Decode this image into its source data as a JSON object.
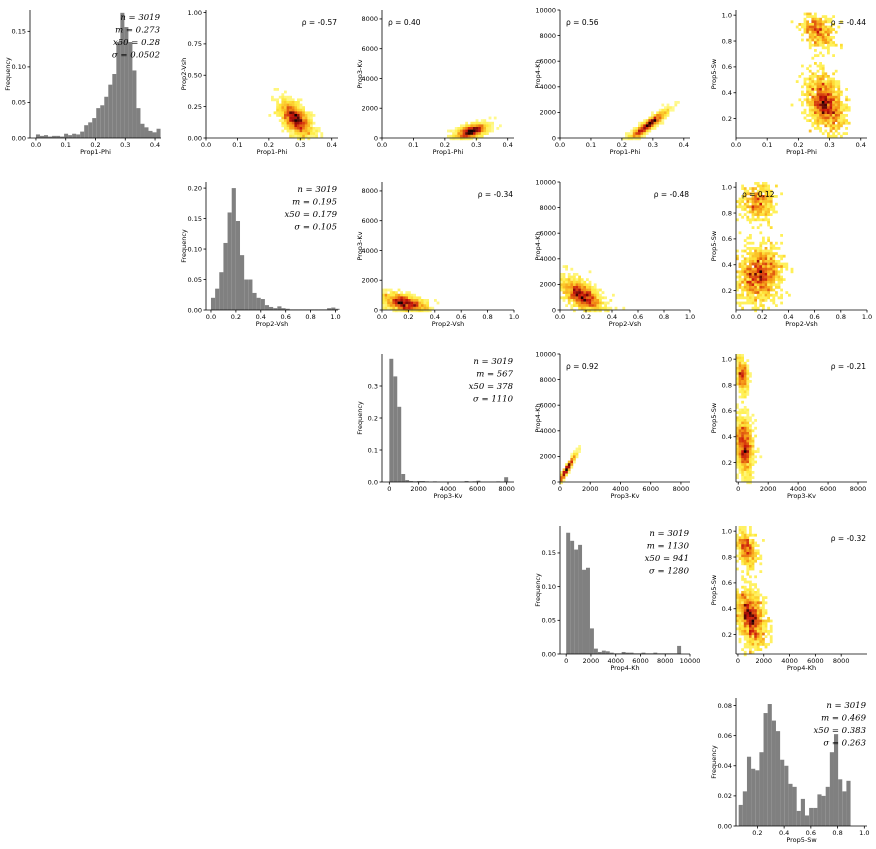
{
  "chart_data": {
    "type": "scatter-matrix",
    "variables": [
      "Prop1-Phi",
      "Prop2-Vsh",
      "Prop3-Kv",
      "Prop4-Kh",
      "Prop5-Sw"
    ],
    "histogram_ylabel": "Frequency",
    "colors": {
      "hist": "#808080",
      "density_low": "#ffff99",
      "density_mid": "#e0301e",
      "density_high": "#000000"
    },
    "diagonal": [
      {
        "variable": "Prop1-Phi",
        "stats": [
          "n = 3019",
          "m = 0.273",
          "x50 = 0.28",
          "σ = 0.0502"
        ],
        "stat_values": {
          "n": 3019,
          "mean": 0.273,
          "median": 0.28,
          "std": 0.0502
        },
        "xlim": [
          -0.02,
          0.42
        ],
        "ylim": [
          0,
          0.18
        ],
        "xticks": [
          "0.0",
          "0.1",
          "0.2",
          "0.3",
          "0.4"
        ],
        "yticks": [
          "0.00",
          "0.05",
          "0.10",
          "0.15"
        ],
        "bin_edges": [
          0.0,
          0.0135
        ],
        "values": [
          0.005,
          0.003,
          0.004,
          0.002,
          0.003,
          0.003,
          0.002,
          0.006,
          0.004,
          0.006,
          0.005,
          0.009,
          0.018,
          0.022,
          0.028,
          0.042,
          0.046,
          0.058,
          0.075,
          0.09,
          0.135,
          0.176,
          0.156,
          0.135,
          0.095,
          0.042,
          0.02,
          0.015,
          0.01,
          0.008,
          0.013
        ]
      },
      {
        "variable": "Prop2-Vsh",
        "stats": [
          "n = 3019",
          "m = 0.195",
          "x50 = 0.179",
          "σ = 0.105"
        ],
        "stat_values": {
          "n": 3019,
          "mean": 0.195,
          "median": 0.179,
          "std": 0.105
        },
        "xlim": [
          -0.04,
          1.02
        ],
        "ylim": [
          0,
          0.21
        ],
        "xticks": [
          "0.0",
          "0.2",
          "0.4",
          "0.6",
          "0.8",
          "1.0"
        ],
        "yticks": [
          "0.00",
          "0.05",
          "0.10",
          "0.15",
          "0.20"
        ],
        "bin_edges": [
          0.0,
          0.0333
        ],
        "values": [
          0.02,
          0.035,
          0.062,
          0.11,
          0.16,
          0.2,
          0.146,
          0.09,
          0.05,
          0.05,
          0.028,
          0.02,
          0.018,
          0.008,
          0.005,
          0.003,
          0.006,
          0.003,
          0.002,
          0.001,
          0.001,
          0.001,
          0.001,
          0.001,
          0.001,
          0.001,
          0.001,
          0.001,
          0.003,
          0.004,
          0.002
        ]
      },
      {
        "variable": "Prop3-Kv",
        "stats": [
          "n = 3019",
          "m = 567",
          "x50 = 378",
          "σ = 1110"
        ],
        "stat_values": {
          "n": 3019,
          "mean": 567,
          "median": 378,
          "std": 1110
        },
        "xlim": [
          -500,
          8500
        ],
        "ylim": [
          0,
          0.4
        ],
        "xticks": [
          "0",
          "2000",
          "4000",
          "6000",
          "8000"
        ],
        "yticks": [
          "0.0",
          "0.1",
          "0.2",
          "0.3"
        ],
        "bin_edges": [
          0,
          270
        ],
        "values": [
          0.385,
          0.33,
          0.235,
          0.025,
          0.006,
          0.003,
          0.002,
          0.003,
          0.003,
          0.002,
          0.001,
          0.002,
          0.001,
          0.001,
          0.001,
          0.001,
          0.001,
          0.001,
          0.001,
          0.003,
          0.001,
          0.002,
          0.004,
          0.001,
          0.001,
          0.001,
          0.001,
          0.002,
          0.001,
          0.015
        ]
      },
      {
        "variable": "Prop4-Kh",
        "stats": [
          "n = 3019",
          "m = 1130",
          "x50 = 941",
          "σ = 1280"
        ],
        "stat_values": {
          "n": 3019,
          "mean": 1130,
          "median": 941,
          "std": 1280
        },
        "xlim": [
          -500,
          10000
        ],
        "ylim": [
          0,
          0.19
        ],
        "xticks": [
          "0",
          "2000",
          "4000",
          "6000",
          "8000",
          "10000"
        ],
        "yticks": [
          "0.00",
          "0.05",
          "0.10",
          "0.15"
        ],
        "bin_edges": [
          0,
          320
        ],
        "values": [
          0.18,
          0.168,
          0.155,
          0.162,
          0.125,
          0.128,
          0.038,
          0.008,
          0.003,
          0.005,
          0.004,
          0.002,
          0.001,
          0.001,
          0.003,
          0.002,
          0.002,
          0.001,
          0.001,
          0.002,
          0.001,
          0.001,
          0.002,
          0.001,
          0.001,
          0.001,
          0.001,
          0.001,
          0.012
        ]
      },
      {
        "variable": "Prop5-Sw",
        "stats": [
          "n = 3019",
          "m = 0.469",
          "x50 = 0.383",
          "σ = 0.263"
        ],
        "stat_values": {
          "n": 3019,
          "mean": 0.469,
          "median": 0.383,
          "std": 0.263
        },
        "xlim": [
          0.04,
          1.02
        ],
        "ylim": [
          0,
          0.085
        ],
        "xticks": [
          "0.2",
          "0.4",
          "0.6",
          "0.8",
          "1.0"
        ],
        "yticks": [
          "0.00",
          "0.02",
          "0.04",
          "0.06",
          "0.08"
        ],
        "bin_edges": [
          0.06,
          0.031
        ],
        "values": [
          0.014,
          0.023,
          0.046,
          0.038,
          0.037,
          0.049,
          0.075,
          0.081,
          0.07,
          0.063,
          0.044,
          0.04,
          0.028,
          0.026,
          0.01,
          0.018,
          0.007,
          0.012,
          0.012,
          0.021,
          0.02,
          0.026,
          0.049,
          0.061,
          0.031,
          0.023,
          0.03
        ]
      }
    ],
    "scatter": [
      {
        "x": "Prop1-Phi",
        "y": "Prop2-Vsh",
        "row": 0,
        "col": 1,
        "rho_label": "ρ = -0.57",
        "rho": -0.57,
        "centers": [
          [
            0.285,
            0.15
          ]
        ],
        "spread": [
          [
            0.025,
            0.07
          ]
        ],
        "corr": -0.57,
        "weights": [
          1
        ],
        "xlim": [
          0,
          0.42
        ],
        "ylim": [
          0,
          1.02
        ],
        "xticks": [
          "0.0",
          "0.1",
          "0.2",
          "0.3",
          "0.4"
        ],
        "yticks": [
          "0.00",
          "0.25",
          "0.50",
          "0.75",
          "1.00"
        ]
      },
      {
        "x": "Prop1-Phi",
        "y": "Prop3-Kv",
        "row": 0,
        "col": 2,
        "rho_label": "ρ = 0.40",
        "rho": 0.4,
        "centers": [
          [
            0.285,
            450
          ]
        ],
        "spread": [
          [
            0.025,
            250
          ]
        ],
        "corr": 0.55,
        "weights": [
          1
        ],
        "xlim": [
          0,
          0.42
        ],
        "ylim": [
          0,
          8600
        ],
        "xticks": [
          "0.0",
          "0.1",
          "0.2",
          "0.3",
          "0.4"
        ],
        "yticks": [
          "0",
          "2000",
          "4000",
          "6000",
          "8000"
        ]
      },
      {
        "x": "Prop1-Phi",
        "y": "Prop4-Kh",
        "row": 0,
        "col": 3,
        "rho_label": "ρ = 0.56",
        "rho": 0.56,
        "centers": [
          [
            0.285,
            1000
          ]
        ],
        "spread": [
          [
            0.03,
            550
          ]
        ],
        "corr": 0.93,
        "weights": [
          1
        ],
        "xlim": [
          0,
          0.42
        ],
        "ylim": [
          0,
          10000
        ],
        "xticks": [
          "0.0",
          "0.1",
          "0.2",
          "0.3",
          "0.4"
        ],
        "yticks": [
          "0",
          "2000",
          "4000",
          "6000",
          "8000",
          "10000"
        ]
      },
      {
        "x": "Prop1-Phi",
        "y": "Prop5-Sw",
        "row": 0,
        "col": 4,
        "rho_label": "ρ = -0.44",
        "rho": -0.44,
        "centers": [
          [
            0.285,
            0.32
          ],
          [
            0.265,
            0.88
          ]
        ],
        "spread": [
          [
            0.03,
            0.11
          ],
          [
            0.025,
            0.07
          ]
        ],
        "corr": -0.3,
        "weights": [
          0.75,
          0.25
        ],
        "xlim": [
          0,
          0.42
        ],
        "ylim": [
          0.05,
          1.04
        ],
        "xticks": [
          "0.0",
          "0.1",
          "0.2",
          "0.3",
          "0.4"
        ],
        "yticks": [
          "0.2",
          "0.4",
          "0.6",
          "0.8",
          "1.0"
        ]
      },
      {
        "x": "Prop2-Vsh",
        "y": "Prop3-Kv",
        "row": 1,
        "col": 2,
        "rho_label": "ρ = -0.34",
        "rho": -0.34,
        "centers": [
          [
            0.17,
            450
          ]
        ],
        "spread": [
          [
            0.08,
            300
          ]
        ],
        "corr": -0.5,
        "weights": [
          1
        ],
        "xlim": [
          0,
          1.0
        ],
        "ylim": [
          0,
          8600
        ],
        "xticks": [
          "0.0",
          "0.2",
          "0.4",
          "0.6",
          "0.8",
          "1.0"
        ],
        "yticks": [
          "0",
          "2000",
          "4000",
          "6000",
          "8000"
        ]
      },
      {
        "x": "Prop2-Vsh",
        "y": "Prop4-Kh",
        "row": 1,
        "col": 3,
        "rho_label": "ρ = -0.48",
        "rho": -0.48,
        "centers": [
          [
            0.17,
            1100
          ]
        ],
        "spread": [
          [
            0.08,
            650
          ]
        ],
        "corr": -0.6,
        "weights": [
          1
        ],
        "xlim": [
          0,
          1.0
        ],
        "ylim": [
          0,
          10000
        ],
        "xticks": [
          "0.0",
          "0.2",
          "0.4",
          "0.6",
          "0.8",
          "1.0"
        ],
        "yticks": [
          "0",
          "2000",
          "4000",
          "6000",
          "8000",
          "10000"
        ]
      },
      {
        "x": "Prop2-Vsh",
        "y": "Prop5-Sw",
        "row": 1,
        "col": 4,
        "rho_label": "ρ = 0.12",
        "rho": 0.12,
        "centers": [
          [
            0.18,
            0.32
          ],
          [
            0.17,
            0.88
          ]
        ],
        "spread": [
          [
            0.08,
            0.11
          ],
          [
            0.07,
            0.07
          ]
        ],
        "corr": 0.1,
        "weights": [
          0.75,
          0.25
        ],
        "xlim": [
          0,
          1.0
        ],
        "ylim": [
          0.05,
          1.04
        ],
        "xticks": [
          "0.0",
          "0.2",
          "0.4",
          "0.6",
          "0.8",
          "1.0"
        ],
        "yticks": [
          "0.2",
          "0.4",
          "0.6",
          "0.8",
          "1.0"
        ]
      },
      {
        "x": "Prop3-Kv",
        "y": "Prop4-Kh",
        "row": 2,
        "col": 3,
        "rho_label": "ρ = 0.92",
        "rho": 0.92,
        "centers": [
          [
            450,
            1000
          ]
        ],
        "spread": [
          [
            300,
            600
          ]
        ],
        "corr": 0.97,
        "weights": [
          1
        ],
        "xlim": [
          0,
          8600
        ],
        "ylim": [
          0,
          10000
        ],
        "xticks": [
          "0",
          "2000",
          "4000",
          "6000",
          "8000"
        ],
        "yticks": [
          "0",
          "2000",
          "4000",
          "6000",
          "8000",
          "10000"
        ]
      },
      {
        "x": "Prop3-Kv",
        "y": "Prop5-Sw",
        "row": 2,
        "col": 4,
        "rho_label": "ρ = -0.21",
        "rho": -0.21,
        "centers": [
          [
            400,
            0.33
          ],
          [
            250,
            0.87
          ]
        ],
        "spread": [
          [
            280,
            0.11
          ],
          [
            200,
            0.07
          ]
        ],
        "corr": -0.2,
        "weights": [
          0.75,
          0.25
        ],
        "xlim": [
          -150,
          8600
        ],
        "ylim": [
          0.05,
          1.04
        ],
        "xticks": [
          "0",
          "2000",
          "4000",
          "6000",
          "8000"
        ],
        "yticks": [
          "0.2",
          "0.4",
          "0.6",
          "0.8",
          "1.0"
        ]
      },
      {
        "x": "Prop4-Kh",
        "y": "Prop5-Sw",
        "row": 3,
        "col": 4,
        "rho_label": "ρ = -0.32",
        "rho": -0.32,
        "centers": [
          [
            1000,
            0.33
          ],
          [
            700,
            0.87
          ]
        ],
        "spread": [
          [
            550,
            0.11
          ],
          [
            400,
            0.07
          ]
        ],
        "corr": -0.3,
        "weights": [
          0.75,
          0.25
        ],
        "xlim": [
          -150,
          10000
        ],
        "ylim": [
          0.05,
          1.04
        ],
        "xticks": [
          "0",
          "2000",
          "4000",
          "6000",
          "8000"
        ],
        "yticks": [
          "0.2",
          "0.4",
          "0.6",
          "0.8",
          "1.0"
        ]
      }
    ]
  }
}
